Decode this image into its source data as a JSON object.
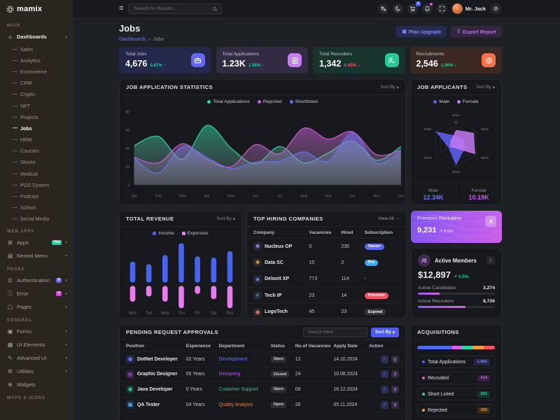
{
  "brand": {
    "name": "mamix"
  },
  "header": {
    "search_placeholder": "Search for Results...",
    "user_name": "Mr. Jack",
    "icons": [
      {
        "name": "translate-icon"
      },
      {
        "name": "moon-icon"
      },
      {
        "name": "cart-icon",
        "badge": "5",
        "badge_bg": "#4f5bf0"
      },
      {
        "name": "bell-icon",
        "dot": "#e05ce6"
      },
      {
        "name": "fullscreen-icon"
      }
    ]
  },
  "ui": {
    "sort_by": "Sort By",
    "chevron_down": "▾",
    "chevron_up": "▴"
  },
  "page": {
    "title": "Jobs",
    "breadcrumb": {
      "parent": "Dashboards",
      "separator": "»",
      "current": "Jobs"
    },
    "actions": {
      "upgrade": "Plan Upgrade",
      "export": "Export Report"
    }
  },
  "sidebar": {
    "sections": [
      {
        "label": "MAIN",
        "items": [
          {
            "label": "Dashboards",
            "icon": "home-icon",
            "glyph": "⌂",
            "chevron": "up",
            "active": true,
            "children": [
              "Sales",
              "Analytics",
              "Ecommerce",
              "CRM",
              "Crypto",
              "NFT",
              "Projects",
              "Jobs",
              "HRM",
              "Courses",
              "Stocks",
              "Medical",
              "POS System",
              "Podcast",
              "School",
              "Social Media"
            ],
            "active_child": "Jobs"
          }
        ]
      },
      {
        "label": "WEB APPS",
        "items": [
          {
            "label": "Apps",
            "icon": "grid-icon",
            "glyph": "⊞",
            "badge": "Hot",
            "badge_bg": "#21ce9e",
            "badge_color": "#ffffff",
            "chevron": "down"
          },
          {
            "label": "Nested Menu",
            "icon": "layers-icon",
            "glyph": "▤",
            "chevron": "down"
          }
        ]
      },
      {
        "label": "PAGES",
        "items": [
          {
            "label": "Authentication",
            "icon": "lock-icon",
            "glyph": "⊡",
            "badge": "8",
            "badge_bg": "#5b67f2",
            "badge_color": "#ffffff",
            "chevron": "down"
          },
          {
            "label": "Error",
            "icon": "error-icon",
            "glyph": "ⓘ",
            "badge": "3",
            "badge_bg": "#d44ae0",
            "badge_color": "#ffffff",
            "chevron": "down"
          },
          {
            "label": "Pages",
            "icon": "pages-icon",
            "glyph": "▢",
            "chevron": "down"
          }
        ]
      },
      {
        "label": "GENERAL",
        "items": [
          {
            "label": "Forms",
            "icon": "forms-icon",
            "glyph": "▣",
            "chevron": "down"
          },
          {
            "label": "UI Elements",
            "icon": "ui-elements-icon",
            "glyph": "▦",
            "chevron": "down"
          },
          {
            "label": "Advanced UI",
            "icon": "advanced-ui-icon",
            "glyph": "✎",
            "chevron": "down"
          },
          {
            "label": "Utilities",
            "icon": "utilities-icon",
            "glyph": "⚙",
            "chevron": "down"
          },
          {
            "label": "Widgets",
            "icon": "widgets-icon",
            "glyph": "⊕"
          }
        ]
      },
      {
        "label": "MAPS & ICONS",
        "items": []
      }
    ]
  },
  "stats": [
    {
      "label": "Total Jobs",
      "value": "4,676",
      "change": "0.67%",
      "direction": "up",
      "change_color": "#21ce9e",
      "icon": "briefcase-icon",
      "icon_bg": "#6467f2",
      "tint": "#23274a"
    },
    {
      "label": "Total Applications",
      "value": "1.23K",
      "change": "1.95%",
      "direction": "up",
      "change_color": "#21ce9e",
      "icon": "file-icon",
      "icon_bg": "#c77df5",
      "tint": "#332a44"
    },
    {
      "label": "Total Recruiters",
      "value": "1,342",
      "change": "4.45%",
      "direction": "down",
      "change_color": "#fb4f5e",
      "icon": "person-check-icon",
      "icon_bg": "#27c99a",
      "tint": "#17352e"
    },
    {
      "label": "Recruitments",
      "value": "2,546",
      "change": "1.56%",
      "direction": "up",
      "change_color": "#21ce9e",
      "icon": "target-icon",
      "icon_bg": "#fd7148",
      "tint": "#3a2822"
    }
  ],
  "cards": {
    "jas": {
      "title": "JOB APPLICATION STATISTICS"
    },
    "applicants": {
      "title": "JOB APPLICANTS"
    },
    "revenue": {
      "title": "TOTAL REVENUE"
    },
    "companies": {
      "title": "TOP HIRING COMPANIES",
      "view_all": "View All →",
      "headers": [
        "Company",
        "Vacancies",
        "Hired",
        "Subscription"
      ],
      "rows": [
        {
          "company": "Nucleus OP",
          "vacancies": "0",
          "hired": "235",
          "subscription": "Starter",
          "badge_bg": "#5b67f2",
          "icon": "company-logo-icon",
          "glyph": "✺",
          "glyph_color": "#a06bf5"
        },
        {
          "company": "Data SC",
          "vacancies": "15",
          "hired": "2",
          "subscription": "Pro",
          "badge_bg": "#38a7f5",
          "icon": "company-logo-icon",
          "glyph": "✤",
          "glyph_color": "#f5a03c"
        },
        {
          "company": "Delooit XP",
          "vacancies": "773",
          "hired": "114",
          "subscription": "-",
          "badge_bg": "",
          "icon": "company-logo-icon",
          "glyph": "◈",
          "glyph_color": "#5b8df5"
        },
        {
          "company": "Tech IP",
          "vacancies": "23",
          "hired": "14",
          "subscription": "Premium",
          "badge_bg": "#fb4f6a",
          "icon": "company-logo-icon",
          "glyph": "#",
          "glyph_color": "#4aa7f0"
        },
        {
          "company": "LogoTech",
          "vacancies": "45",
          "hired": "23",
          "subscription": "Expired",
          "badge_bg": "#34373c",
          "icon": "company-logo-icon",
          "glyph": "◉",
          "glyph_color": "#fb6d4c"
        }
      ]
    },
    "premium": {
      "title": "Premium Recruiters",
      "value": "9,231",
      "change": "0.5%",
      "trend": "↗"
    },
    "members": {
      "title": "Active Members",
      "amount": "$12,897",
      "change": "3.5%",
      "trend": "↗",
      "rows": [
        {
          "label": "Active Candidates",
          "value": "3,274",
          "pct": 28
        },
        {
          "label": "Active Recruiters",
          "value": "8,726",
          "pct": 62
        }
      ]
    },
    "pending": {
      "title": "PENDING REQUEST APPROVALS",
      "search_placeholder": "Search Here",
      "sort_label": "Sort By",
      "headers": [
        "Position",
        "Experience",
        "Department",
        "Status",
        "No.of Vacancies",
        "Apply Date",
        "Action"
      ],
      "rows": [
        {
          "position": "DotNet Developer",
          "experience": "02 Years",
          "department": "Development",
          "dep_color": "#6d79f6",
          "status": "Open",
          "vacancies": "12",
          "date": "14.10.2024",
          "glyph": "◉",
          "icon_bg": "#23284a",
          "icon_color": "#6d79f6"
        },
        {
          "position": "Graphic Designer",
          "experience": "05 Years",
          "department": "Designing",
          "dep_color": "#b55cf6",
          "status": "Closed",
          "vacancies": "24",
          "date": "10.08.2024",
          "glyph": "◎",
          "icon_bg": "#332040",
          "icon_color": "#c55ff2"
        },
        {
          "position": "Java Developer",
          "experience": "0 Years",
          "department": "Customer Support",
          "dep_color": "#27c99a",
          "status": "Open",
          "vacancies": "08",
          "date": "16.12.2024",
          "glyph": "◉",
          "icon_bg": "#143029",
          "icon_color": "#21ce9e"
        },
        {
          "position": "QA Tester",
          "experience": "04 Years",
          "department": "Quality Analysis",
          "dep_color": "#fd7e41",
          "status": "Open",
          "vacancies": "26",
          "date": "05.11.2024",
          "glyph": "▣",
          "icon_bg": "#1b2a3d",
          "icon_color": "#4aa7f0"
        }
      ]
    },
    "acquisitions": {
      "title": "ACQUISITIONS"
    }
  },
  "chart_data": [
    {
      "id": "job_application_statistics",
      "type": "area",
      "title": "JOB APPLICATION STATISTICS",
      "x": [
        "Jan",
        "Feb",
        "Mar",
        "Apr",
        "May",
        "Jun",
        "Jul",
        "Aug",
        "Sep",
        "Oct",
        "Nov",
        "Dec"
      ],
      "ylim": [
        0,
        80
      ],
      "yticks": [
        0,
        20,
        40,
        60,
        80
      ],
      "legend_position": "top",
      "grid": false,
      "series": [
        {
          "name": "Total Applications",
          "color": "#2bd4a2",
          "values": [
            43,
            53,
            28,
            65,
            40,
            23,
            42,
            24,
            35,
            48,
            27,
            42
          ]
        },
        {
          "name": "Rejected",
          "color": "#cd59d6",
          "values": [
            30,
            24,
            45,
            28,
            20,
            44,
            34,
            62,
            50,
            58,
            33,
            38
          ]
        },
        {
          "name": "Shortlisted",
          "color": "#6472f1",
          "values": [
            29,
            13,
            42,
            30,
            18,
            25,
            26,
            36,
            26,
            57,
            24,
            37
          ]
        }
      ]
    },
    {
      "id": "job_applicants",
      "type": "radar",
      "title": "JOB APPLICANTS",
      "categories": [
        "2011",
        "2012",
        "2013",
        "2014",
        "2015",
        "2016"
      ],
      "max": 80,
      "max_label": "80",
      "series": [
        {
          "name": "Male",
          "color": "#6061f6",
          "values": [
            25,
            30,
            35,
            75,
            30,
            80
          ]
        },
        {
          "name": "Female",
          "color": "#c678f3",
          "values": [
            45,
            70,
            75,
            18,
            25,
            20
          ]
        }
      ],
      "totals": [
        {
          "label": "Male",
          "value": "12.34K",
          "color": "#6d79f6"
        },
        {
          "label": "Female",
          "value": "10.19K",
          "color": "#c55ff2"
        }
      ]
    },
    {
      "id": "total_revenue",
      "type": "diverging-bar",
      "title": "TOTAL REVENUE",
      "categories": [
        "Mon",
        "Tue",
        "Wed",
        "Thu",
        "Fri",
        "Sat",
        "Sun"
      ],
      "grid": true,
      "series": [
        {
          "name": "Income",
          "color": "#4664f0",
          "values": [
            32,
            28,
            42,
            60,
            40,
            38,
            48
          ]
        },
        {
          "name": "Expenses",
          "color": "#e87bf0",
          "values": [
            24,
            16,
            24,
            34,
            12,
            20,
            34
          ]
        }
      ]
    },
    {
      "id": "acquisitions",
      "type": "stacked-bar",
      "title": "ACQUISITIONS",
      "segments": [
        {
          "label": "Total Applications",
          "value": "1,962",
          "color": "#4f6af0",
          "pct": 45,
          "badge_bg": "#23284a",
          "badge_color": "#7d88f7"
        },
        {
          "label": "Recruited",
          "value": "214",
          "color": "#e05ce6",
          "pct": 12,
          "badge_bg": "#3a2040",
          "badge_color": "#d06af0"
        },
        {
          "label": "Short Listed",
          "value": "262",
          "color": "#2bd4a2",
          "pct": 14,
          "badge_bg": "#14352d",
          "badge_color": "#2bd4a2"
        },
        {
          "label": "Rejected",
          "value": "395",
          "color": "#f5a03c",
          "pct": 15,
          "badge_bg": "#3a2d16",
          "badge_color": "#f5a03c"
        },
        {
          "label": "",
          "value": "",
          "color": "#fb4f5e",
          "pct": 14
        }
      ]
    }
  ]
}
